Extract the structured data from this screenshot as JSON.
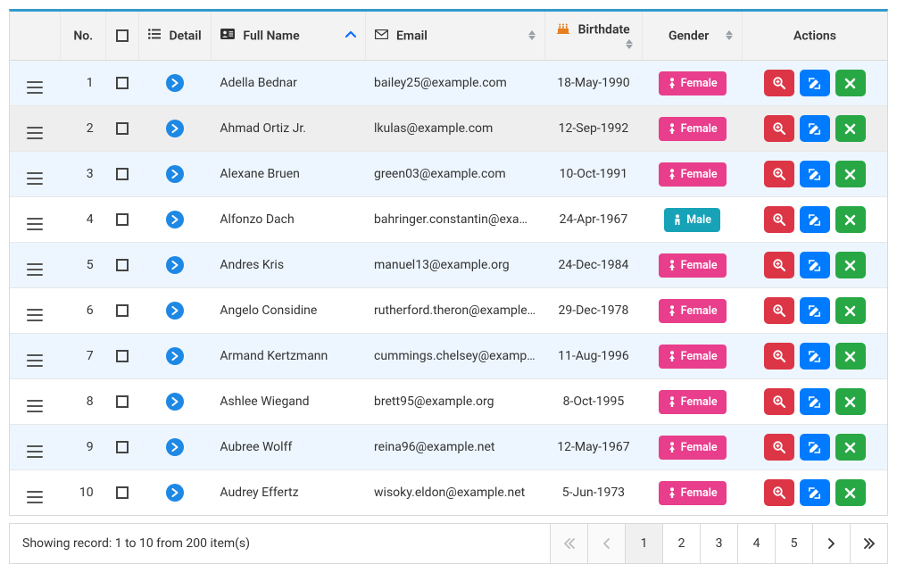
{
  "colors": {
    "border_top": "#3399cc",
    "border": "#d9d9d9",
    "header_bg": "#f3f3f3",
    "stripe_bg": "#edf6fe",
    "hover_bg": "#eeeeee",
    "sort_active": "#0d6efd",
    "detail_btn": "#1e88e5",
    "badge_female": "#e83e8c",
    "badge_male": "#17a2b8",
    "btn_view": "#dc3545",
    "btn_edit": "#007bff",
    "btn_delete": "#28a745"
  },
  "headers": {
    "no": "No.",
    "detail": "Detail",
    "full_name": "Full Name",
    "email": "Email",
    "birthdate": "Birthdate",
    "gender": "Gender",
    "actions": "Actions"
  },
  "gender_labels": {
    "female": "Female",
    "male": "Male"
  },
  "rows": [
    {
      "no": "1",
      "name": "Adella Bednar",
      "email": "bailey25@example.com",
      "birthdate": "18-May-1990",
      "gender": "female"
    },
    {
      "no": "2",
      "name": "Ahmad Ortiz Jr.",
      "email": "lkulas@example.com",
      "birthdate": "12-Sep-1992",
      "gender": "female"
    },
    {
      "no": "3",
      "name": "Alexane Bruen",
      "email": "green03@example.com",
      "birthdate": "10-Oct-1991",
      "gender": "female"
    },
    {
      "no": "4",
      "name": "Alfonzo Dach",
      "email": "bahringer.constantin@example.org",
      "birthdate": "24-Apr-1967",
      "gender": "male"
    },
    {
      "no": "5",
      "name": "Andres Kris",
      "email": "manuel13@example.org",
      "birthdate": "24-Dec-1984",
      "gender": "female"
    },
    {
      "no": "6",
      "name": "Angelo Considine",
      "email": "rutherford.theron@example.com",
      "birthdate": "29-Dec-1978",
      "gender": "female"
    },
    {
      "no": "7",
      "name": "Armand Kertzmann",
      "email": "cummings.chelsey@example.net",
      "birthdate": "11-Aug-1996",
      "gender": "female"
    },
    {
      "no": "8",
      "name": "Ashlee Wiegand",
      "email": "brett95@example.org",
      "birthdate": "8-Oct-1995",
      "gender": "female"
    },
    {
      "no": "9",
      "name": "Aubree Wolff",
      "email": "reina96@example.net",
      "birthdate": "12-May-1967",
      "gender": "female"
    },
    {
      "no": "10",
      "name": "Audrey Effertz",
      "email": "wisoky.eldon@example.net",
      "birthdate": "5-Jun-1973",
      "gender": "female"
    }
  ],
  "hovered_row_index": 1,
  "footer": {
    "text": "Showing record: 1 to 10 from 200 item(s)",
    "pages": [
      "1",
      "2",
      "3",
      "4",
      "5"
    ],
    "active_page": "1"
  }
}
